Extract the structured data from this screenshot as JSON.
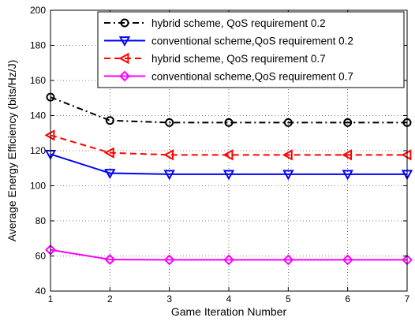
{
  "chart_data": {
    "type": "line",
    "title": "",
    "xlabel": "Game Iteration Number",
    "ylabel": "Average Energy Efficiency (bits/Hz/J)",
    "xlim": [
      1,
      7
    ],
    "ylim": [
      40,
      200
    ],
    "x": [
      1,
      2,
      3,
      4,
      5,
      6,
      7
    ],
    "xticks": [
      1,
      2,
      3,
      4,
      5,
      6,
      7
    ],
    "yticks": [
      40,
      60,
      80,
      100,
      120,
      140,
      160,
      180,
      200
    ],
    "grid": true,
    "legend_position": "top-right",
    "series": [
      {
        "name": "hybrid scheme, QoS requirement 0.2",
        "values": [
          150.5,
          137.2,
          136.0,
          136.0,
          136.0,
          136.0,
          136.0
        ],
        "color": "#000000",
        "line_style": "dash-dot",
        "marker": "circle"
      },
      {
        "name": "conventional scheme,QoS requirement 0.2",
        "values": [
          118.0,
          107.2,
          106.6,
          106.6,
          106.6,
          106.6,
          106.6
        ],
        "color": "#0000ff",
        "line_style": "solid",
        "marker": "triangle-down"
      },
      {
        "name": "hybrid scheme, QoS requirement 0.7",
        "values": [
          128.8,
          118.8,
          117.6,
          117.6,
          117.6,
          117.6,
          117.6
        ],
        "color": "#ff0000",
        "line_style": "dashed",
        "marker": "triangle-left"
      },
      {
        "name": "conventional scheme,QoS requirement 0.7",
        "values": [
          63.5,
          58.0,
          57.8,
          57.8,
          57.8,
          57.8,
          57.8
        ],
        "color": "#ff00ff",
        "line_style": "solid",
        "marker": "diamond"
      }
    ]
  }
}
